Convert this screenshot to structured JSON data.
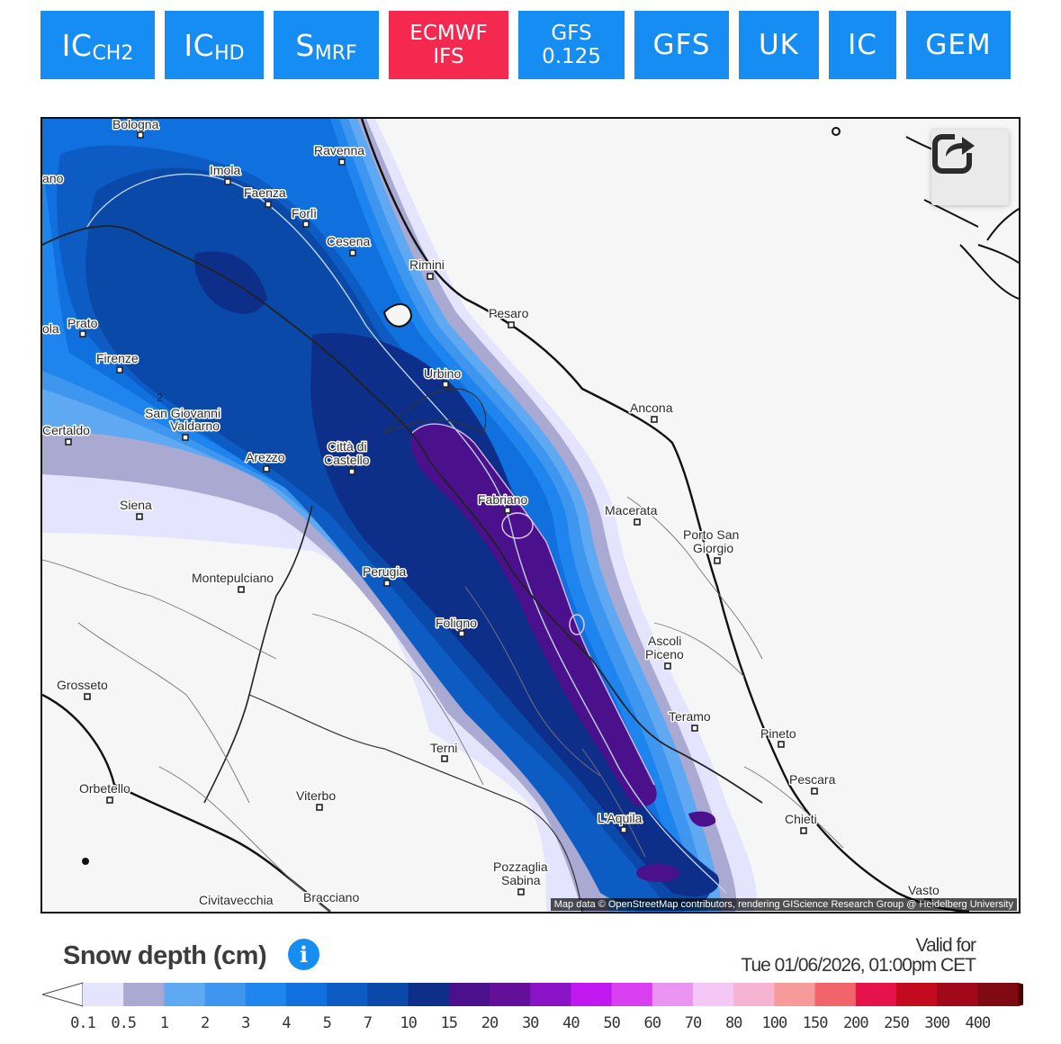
{
  "tabs": [
    {
      "main": "IC",
      "sub": "CH2",
      "style": "sub",
      "active": false
    },
    {
      "main": "IC",
      "sub": "HD",
      "style": "sub",
      "active": false
    },
    {
      "main": "S",
      "sub": "MRF",
      "style": "sub",
      "active": false
    },
    {
      "line1": "ECMWF",
      "line2": "IFS",
      "style": "two",
      "active": true
    },
    {
      "line1": "GFS",
      "line2": "0.125",
      "style": "two",
      "active": false
    },
    {
      "main": "GFS",
      "style": "big",
      "active": false
    },
    {
      "main": "UK",
      "style": "big",
      "active": false
    },
    {
      "main": "IC",
      "style": "big",
      "active": false
    },
    {
      "main": "GEM",
      "style": "big",
      "active": false
    }
  ],
  "map": {
    "attribution": "Map data © OpenStreetMap contributors, rendering GIScience Research Group @ Heidelberg University",
    "share_icon": "share-icon",
    "contour_label": "2",
    "cities": [
      "Bologna",
      "Ravenna",
      "Imola",
      "Faenza",
      "Forlì",
      "Cesena",
      "Rimini",
      "Pesaro",
      "Prato",
      "Firenze",
      "Urbino",
      "Ancona",
      "San Giovanni",
      "Valdarno",
      "Certaldo",
      "Arezzo",
      "Città di",
      "Castello",
      "Fabriano",
      "Macerata",
      "Porto San",
      "Giorgio",
      "Siena",
      "Montepulciano",
      "Perugia",
      "Foligno",
      "Ascoli",
      "Piceno",
      "Grosseto",
      "Teramo",
      "Pineto",
      "Terni",
      "Pescara",
      "Orbetello",
      "Viterbo",
      "L'Aquila",
      "Chieti",
      "Pozzaglia",
      "Sabina",
      "Civitavecchia",
      "Bracciano",
      "Vasto",
      "ano",
      "ola"
    ]
  },
  "legend": {
    "title": "Snow depth (cm)",
    "info_icon": "info-icon",
    "valid_label": "Valid for",
    "valid_time": "Tue 01/06/2026, 01:00pm CET",
    "ticks": [
      "0.1",
      "0.5",
      "1",
      "2",
      "3",
      "4",
      "5",
      "7",
      "10",
      "15",
      "20",
      "30",
      "40",
      "50",
      "60",
      "70",
      "80",
      "100",
      "150",
      "200",
      "250",
      "300",
      "400"
    ],
    "colors": [
      "#e4e4ff",
      "#a9a9d2",
      "#5fa8f2",
      "#3f96ef",
      "#1e84ee",
      "#1070de",
      "#0c5cc4",
      "#0a49a8",
      "#0d2f8a",
      "#4b108c",
      "#630f99",
      "#8b14c8",
      "#c018ee",
      "#d93ff0",
      "#eb95f3",
      "#f4c7f7",
      "#f7b3d2",
      "#f69a9a",
      "#f2646a",
      "#e5134a",
      "#c40a1d",
      "#a1081a",
      "#7f0a12"
    ],
    "arrow_color_low": "#ffffff",
    "arrow_color_high": "#4a0000"
  }
}
